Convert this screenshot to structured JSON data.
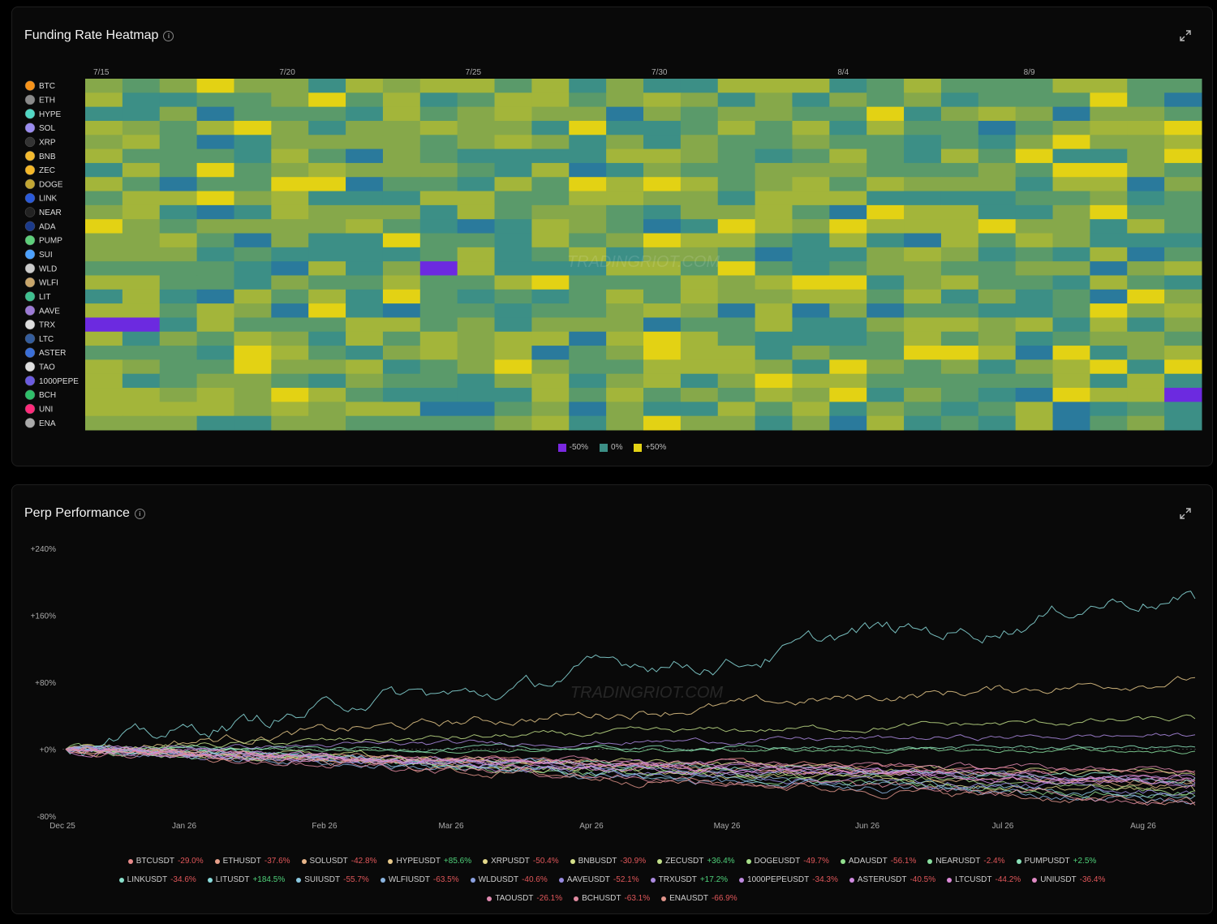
{
  "heatmap": {
    "title": "Funding Rate Heatmap",
    "date_ticks": [
      "7/15",
      "7/20",
      "7/25",
      "7/30",
      "8/4",
      "8/9"
    ],
    "legend": [
      {
        "label": "-50%",
        "color": "#7a28e0"
      },
      {
        "label": "0%",
        "color": "#3c8f86"
      },
      {
        "label": "+50%",
        "color": "#e3d214"
      }
    ],
    "coins": [
      {
        "symbol": "BTC",
        "icon_color": "#f7931a",
        "icon": "btc-icon"
      },
      {
        "symbol": "ETH",
        "icon_color": "#8a8a8a",
        "icon": "eth-icon"
      },
      {
        "symbol": "HYPE",
        "icon_color": "#52d7c4",
        "icon": "hype-icon"
      },
      {
        "symbol": "SOL",
        "icon_color": "#9b8cf0",
        "icon": "sol-icon"
      },
      {
        "symbol": "XRP",
        "icon_color": "#333333",
        "icon": "xrp-icon"
      },
      {
        "symbol": "BNB",
        "icon_color": "#f3ba2f",
        "icon": "bnb-icon"
      },
      {
        "symbol": "ZEC",
        "icon_color": "#f4b728",
        "icon": "zec-icon"
      },
      {
        "symbol": "DOGE",
        "icon_color": "#c2a633",
        "icon": "doge-icon"
      },
      {
        "symbol": "LINK",
        "icon_color": "#2a5ada",
        "icon": "link-icon"
      },
      {
        "symbol": "NEAR",
        "icon_color": "#222222",
        "icon": "near-icon"
      },
      {
        "symbol": "ADA",
        "icon_color": "#1b3a8a",
        "icon": "ada-icon"
      },
      {
        "symbol": "PUMP",
        "icon_color": "#5dcf7a",
        "icon": "pump-icon"
      },
      {
        "symbol": "SUI",
        "icon_color": "#4da2ff",
        "icon": "sui-icon"
      },
      {
        "symbol": "WLD",
        "icon_color": "#cccccc",
        "icon": "wld-icon"
      },
      {
        "symbol": "WLFI",
        "icon_color": "#c9a66b",
        "icon": "wlfi-icon"
      },
      {
        "symbol": "LIT",
        "icon_color": "#3fbf8f",
        "icon": "lit-icon"
      },
      {
        "symbol": "AAVE",
        "icon_color": "#9c7ad6",
        "icon": "aave-icon"
      },
      {
        "symbol": "TRX",
        "icon_color": "#dddddd",
        "icon": "trx-icon"
      },
      {
        "symbol": "LTC",
        "icon_color": "#345d9d",
        "icon": "ltc-icon"
      },
      {
        "symbol": "ASTER",
        "icon_color": "#3a6fd8",
        "icon": "aster-icon"
      },
      {
        "symbol": "TAO",
        "icon_color": "#dddddd",
        "icon": "tao-icon"
      },
      {
        "symbol": "1000PEPE",
        "icon_color": "#6b5be0",
        "icon": "pepe-icon"
      },
      {
        "symbol": "BCH",
        "icon_color": "#2fbf6a",
        "icon": "bch-icon"
      },
      {
        "symbol": "UNI",
        "icon_color": "#ff2a7a",
        "icon": "uni-icon"
      },
      {
        "symbol": "ENA",
        "icon_color": "#aaaaaa",
        "icon": "ena-icon"
      }
    ]
  },
  "perf": {
    "title": "Perp Performance",
    "y_ticks": [
      "+240%",
      "+160%",
      "+80%",
      "+0%",
      "-80%"
    ],
    "x_ticks": [
      "Dec 25",
      "Jan 26",
      "Feb 26",
      "Mar 26",
      "Apr 26",
      "May 26",
      "Jun 26",
      "Jul 26",
      "Aug 26"
    ],
    "legend_rows": [
      [
        {
          "name": "BTCUSDT",
          "value": "-29.0%",
          "color": "#e88a8a"
        },
        {
          "name": "ETHUSDT",
          "value": "-37.6%",
          "color": "#e8a08a"
        },
        {
          "name": "SOLUSDT",
          "value": "-42.8%",
          "color": "#e8b58a"
        },
        {
          "name": "HYPEUSDT",
          "value": "+85.6%",
          "color": "#e8c98a"
        },
        {
          "name": "XRPUSDT",
          "value": "-50.4%",
          "color": "#e3d88a"
        },
        {
          "name": "BNBUSDT",
          "value": "-30.9%",
          "color": "#d6e08a"
        },
        {
          "name": "ZECUSDT",
          "value": "+36.4%",
          "color": "#c2e08a"
        },
        {
          "name": "DOGEUSDT",
          "value": "-49.7%",
          "color": "#a8e08a"
        },
        {
          "name": "ADAUSDT",
          "value": "-56.1%",
          "color": "#92e08e"
        },
        {
          "name": "NEARUSDT",
          "value": "-2.4%",
          "color": "#8ae0a0"
        },
        {
          "name": "PUMPUSDT",
          "value": "+2.5%",
          "color": "#8ae0b8"
        }
      ],
      [
        {
          "name": "LINKUSDT",
          "value": "-34.6%",
          "color": "#8ae0cc"
        },
        {
          "name": "LITUSDT",
          "value": "+184.5%",
          "color": "#8adcdc"
        },
        {
          "name": "SUIUSDT",
          "value": "-55.7%",
          "color": "#8ac8e0"
        },
        {
          "name": "WLFIUSDT",
          "value": "-63.5%",
          "color": "#8ab4e0"
        },
        {
          "name": "WLDUSDT",
          "value": "-40.6%",
          "color": "#8aa0e0"
        },
        {
          "name": "AAVEUSDT",
          "value": "-52.1%",
          "color": "#988ae0"
        },
        {
          "name": "TRXUSDT",
          "value": "+17.2%",
          "color": "#ac8ae0"
        },
        {
          "name": "1000PEPEUSDT",
          "value": "-34.3%",
          "color": "#c08ae0"
        },
        {
          "name": "ASTERUSDT",
          "value": "-40.5%",
          "color": "#d08ae0"
        },
        {
          "name": "LTCUSDT",
          "value": "-44.2%",
          "color": "#dc8ad8"
        },
        {
          "name": "UNIUSDT",
          "value": "-36.4%",
          "color": "#e08ac4"
        }
      ],
      [
        {
          "name": "TAOUSDT",
          "value": "-26.1%",
          "color": "#e08ab0"
        },
        {
          "name": "BCHUSDT",
          "value": "-63.1%",
          "color": "#e08aa0"
        },
        {
          "name": "ENAUSDT",
          "value": "-66.9%",
          "color": "#e0948a"
        }
      ]
    ]
  },
  "watermark": "TRADINGRIOT.COM",
  "chart_data": [
    {
      "type": "heatmap",
      "title": "Funding Rate Heatmap",
      "x_ticks": [
        "7/15",
        "7/20",
        "7/25",
        "7/30",
        "8/4",
        "8/9"
      ],
      "rows": [
        "BTC",
        "ETH",
        "HYPE",
        "SOL",
        "XRP",
        "BNB",
        "ZEC",
        "DOGE",
        "LINK",
        "NEAR",
        "ADA",
        "PUMP",
        "SUI",
        "WLD",
        "WLFI",
        "LIT",
        "AAVE",
        "TRX",
        "LTC",
        "ASTER",
        "TAO",
        "1000PEPE",
        "BCH",
        "UNI",
        "ENA"
      ],
      "scale": {
        "min": "-50%",
        "mid": "0%",
        "max": "+50%"
      }
    },
    {
      "type": "line",
      "title": "Perp Performance",
      "x": [
        "Dec 25",
        "Jan 26",
        "Feb 26",
        "Mar 26",
        "Apr 26",
        "May 26",
        "Jun 26",
        "Jul 26",
        "Aug 26"
      ],
      "ylim": [
        -80,
        240
      ],
      "series": [
        {
          "name": "BTCUSDT",
          "final": -29.0
        },
        {
          "name": "ETHUSDT",
          "final": -37.6
        },
        {
          "name": "SOLUSDT",
          "final": -42.8
        },
        {
          "name": "HYPEUSDT",
          "final": 85.6
        },
        {
          "name": "XRPUSDT",
          "final": -50.4
        },
        {
          "name": "BNBUSDT",
          "final": -30.9
        },
        {
          "name": "ZECUSDT",
          "final": 36.4
        },
        {
          "name": "DOGEUSDT",
          "final": -49.7
        },
        {
          "name": "ADAUSDT",
          "final": -56.1
        },
        {
          "name": "NEARUSDT",
          "final": -2.4
        },
        {
          "name": "PUMPUSDT",
          "final": 2.5
        },
        {
          "name": "LINKUSDT",
          "final": -34.6
        },
        {
          "name": "LITUSDT",
          "final": 184.5
        },
        {
          "name": "SUIUSDT",
          "final": -55.7
        },
        {
          "name": "WLFIUSDT",
          "final": -63.5
        },
        {
          "name": "WLDUSDT",
          "final": -40.6
        },
        {
          "name": "AAVEUSDT",
          "final": -52.1
        },
        {
          "name": "TRXUSDT",
          "final": 17.2
        },
        {
          "name": "1000PEPEUSDT",
          "final": -34.3
        },
        {
          "name": "ASTERUSDT",
          "final": -40.5
        },
        {
          "name": "LTCUSDT",
          "final": -44.2
        },
        {
          "name": "UNIUSDT",
          "final": -36.4
        },
        {
          "name": "TAOUSDT",
          "final": -26.1
        },
        {
          "name": "BCHUSDT",
          "final": -63.1
        },
        {
          "name": "ENAUSDT",
          "final": -66.9
        }
      ]
    }
  ]
}
